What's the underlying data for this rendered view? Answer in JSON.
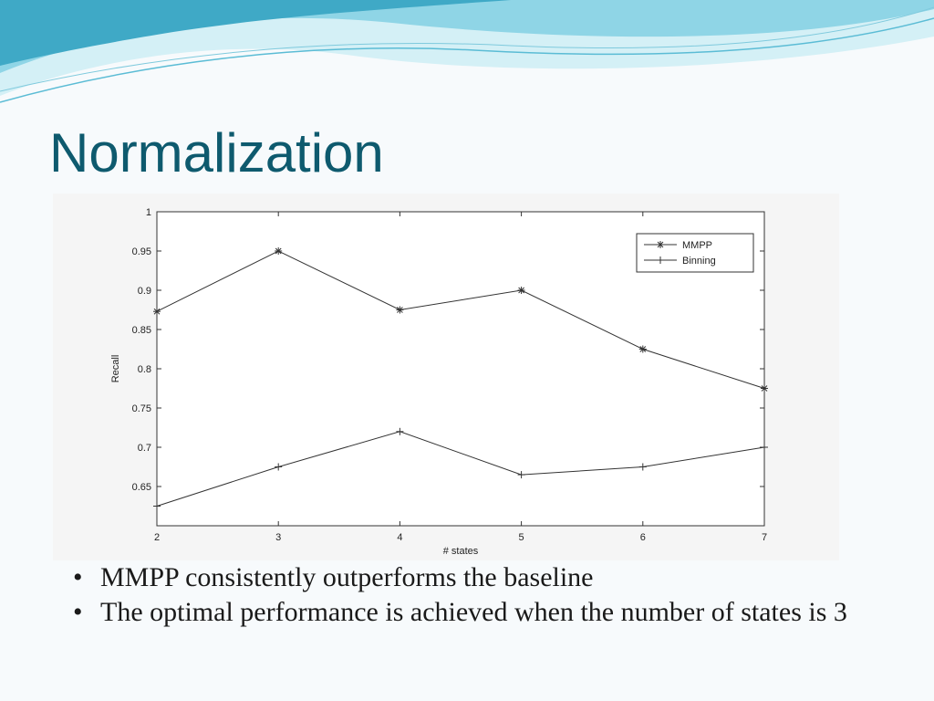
{
  "slide": {
    "title": "Normalization",
    "bullets": [
      "MMPP consistently outperforms the baseline",
      "The optimal performance is achieved when the number of states is 3"
    ],
    "bullet_symbol": "•",
    "colors": {
      "title": "#0e5a6e",
      "wave_light": "#cdeef5",
      "wave_mid": "#8fd6e6",
      "wave_dark": "#44aec9",
      "series": "#333333"
    }
  },
  "chart_data": {
    "type": "line",
    "x": [
      2,
      3,
      4,
      5,
      6,
      7
    ],
    "series": [
      {
        "name": "MMPP",
        "marker": "star",
        "values": [
          0.873,
          0.95,
          0.875,
          0.9,
          0.825,
          0.775
        ]
      },
      {
        "name": "Binning",
        "marker": "plus",
        "values": [
          0.625,
          0.675,
          0.72,
          0.665,
          0.675,
          0.7
        ]
      }
    ],
    "xlabel": "# states",
    "ylabel": "Recall",
    "xlim": [
      2,
      7
    ],
    "ylim": [
      0.6,
      1
    ],
    "xticks": [
      "2",
      "3",
      "4",
      "5",
      "6",
      "7"
    ],
    "yticks": [
      "0.65",
      "0.7",
      "0.75",
      "0.8",
      "0.85",
      "0.9",
      "0.95",
      "1"
    ],
    "grid": false,
    "legend": "top-right"
  }
}
